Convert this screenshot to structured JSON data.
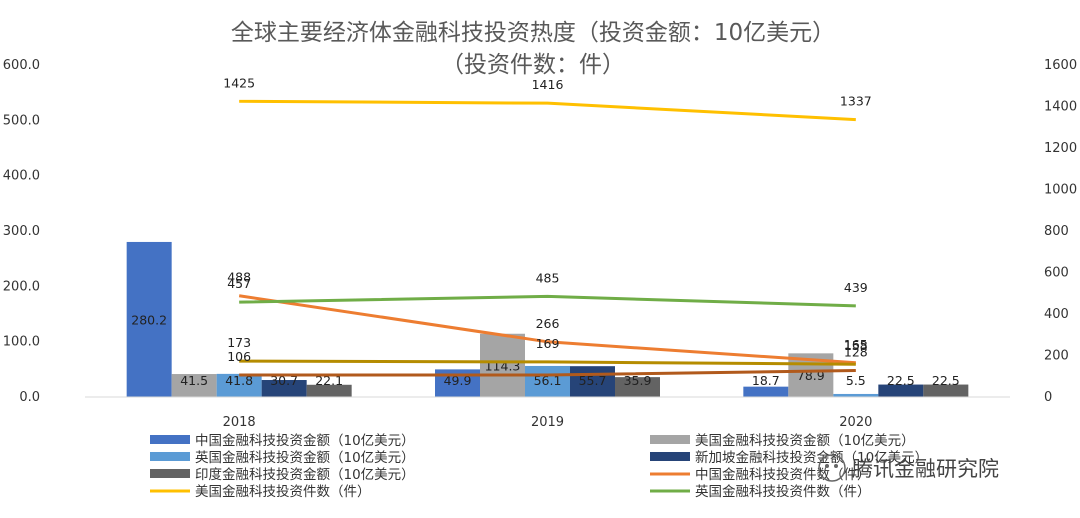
{
  "chart_data": {
    "type": "bar",
    "title": "全球主要经济体金融科技投资热度（投资金额：10亿美元）",
    "subtitle": "（投资件数：件）",
    "categories": [
      "2018",
      "2019",
      "2020"
    ],
    "y_left": {
      "min": 0,
      "max": 600,
      "step": 100,
      "tick_labels": [
        "0.0",
        "100.0",
        "200.0",
        "300.0",
        "400.0",
        "500.0",
        "600.0"
      ]
    },
    "y_right": {
      "min": 0,
      "max": 1600,
      "step": 200,
      "tick_labels": [
        "0",
        "200",
        "400",
        "600",
        "800",
        "1000",
        "1200",
        "1400",
        "1600"
      ]
    },
    "bar_series": [
      {
        "name": "中国金融科技投资金额（10亿美元）",
        "color": "#4472c4",
        "values": [
          280.2,
          49.9,
          18.7
        ],
        "labels": [
          "280.2",
          "49.9",
          "18.7"
        ]
      },
      {
        "name": "美国金融科技投资金额（10亿美元）",
        "color": "#a5a5a5",
        "values": [
          41.5,
          114.3,
          78.9
        ],
        "labels": [
          "41.5",
          "114.3",
          "78.9"
        ]
      },
      {
        "name": "英国金融科技投资金额（10亿美元）",
        "color": "#5b9bd5",
        "values": [
          41.8,
          56.1,
          5.5
        ],
        "labels": [
          "41.8",
          "56.1",
          "5.5"
        ]
      },
      {
        "name": "新加坡金融科技投资金额（10亿美元）",
        "color": "#264478",
        "values": [
          30.7,
          55.7,
          22.5
        ],
        "labels": [
          "30.7",
          "55.7",
          "22.5"
        ]
      },
      {
        "name": "印度金融科技投资金额（10亿美元）",
        "color": "#636363",
        "values": [
          22.1,
          35.9,
          22.5
        ],
        "labels": [
          "22.1",
          "35.9",
          "22.5"
        ]
      }
    ],
    "line_series": [
      {
        "name": "中国金融科技投资件数（件）",
        "color": "#ed7d31",
        "values": [
          488,
          266,
          165
        ],
        "labels": [
          "488",
          "266",
          "165"
        ]
      },
      {
        "name": "美国金融科技投资件数（件）",
        "color": "#ffc000",
        "values": [
          1425,
          1416,
          1337
        ],
        "labels": [
          "1425",
          "1416",
          "1337"
        ]
      },
      {
        "name": "英国金融科技投资件数（件）",
        "color": "#70ad47",
        "values": [
          457,
          485,
          439
        ],
        "labels": [
          "457",
          "485",
          "439"
        ]
      },
      {
        "name": "",
        "color": "#b58c00",
        "values": [
          173,
          169,
          158
        ],
        "labels": [
          "173",
          "169",
          "158"
        ]
      },
      {
        "name": "",
        "color": "#b15a1c",
        "values": [
          106,
          106,
          128
        ],
        "labels": [
          "106",
          "",
          "128"
        ]
      }
    ],
    "legend_position": "bottom",
    "grid": false
  },
  "watermark": {
    "text": "腾讯金融研究院"
  }
}
